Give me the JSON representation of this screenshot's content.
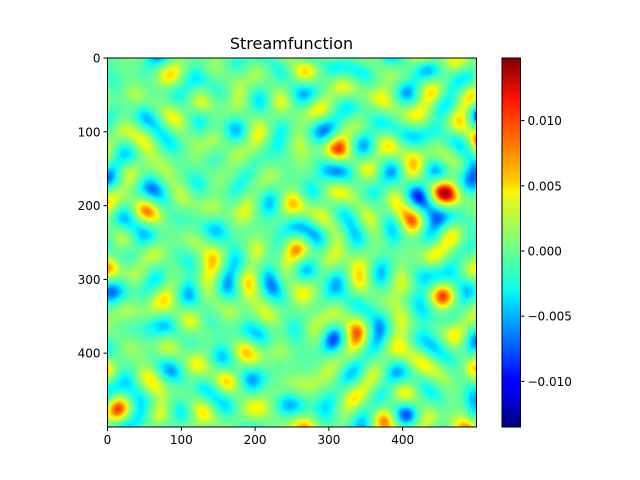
{
  "chart_data": {
    "type": "heatmap",
    "title": "Streamfunction",
    "xlabel": "",
    "ylabel": "",
    "x_ticks": [
      0,
      100,
      200,
      300,
      400
    ],
    "y_ticks": [
      0,
      100,
      200,
      300,
      400
    ],
    "xlim": [
      0,
      500
    ],
    "ylim": [
      500,
      0
    ],
    "grid": false,
    "colormap": "jet",
    "colorbar": {
      "min": -0.0135,
      "max": 0.0148,
      "ticks": [
        -0.01,
        -0.005,
        0.0,
        0.005,
        0.01
      ],
      "tick_labels": [
        "−0.010",
        "−0.005",
        "0.000",
        "0.005",
        "0.010"
      ],
      "placement": "right"
    },
    "field_description": "500x500 field of smooth random vortex blobs with values between -0.0135 and 0.0148"
  }
}
